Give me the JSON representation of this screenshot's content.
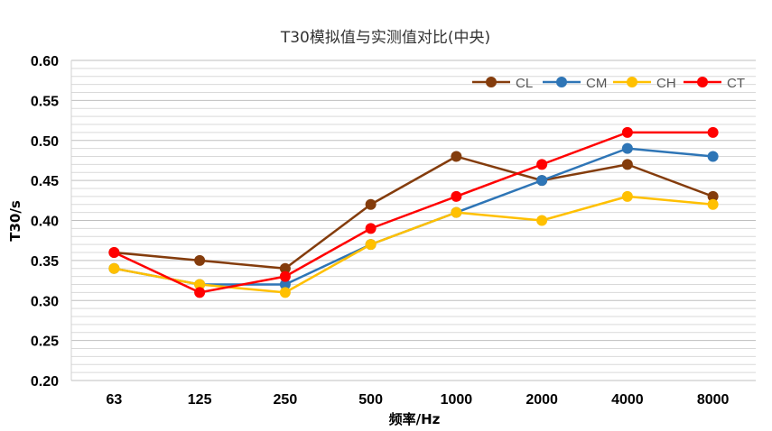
{
  "chart_data": {
    "type": "line",
    "title": "T30模拟值与实测值对比(中央)",
    "xlabel": "频率/Hz",
    "ylabel": "T30/s",
    "categories": [
      "63",
      "125",
      "250",
      "500",
      "1000",
      "2000",
      "4000",
      "8000"
    ],
    "ylim": [
      0.2,
      0.6
    ],
    "yticks": [
      "0.20",
      "0.25",
      "0.30",
      "0.35",
      "0.40",
      "0.45",
      "0.50",
      "0.55",
      "0.60"
    ],
    "legend_position": "top-right",
    "grid": true,
    "series": [
      {
        "name": "CL",
        "color": "#843C0C",
        "values": [
          0.36,
          0.35,
          0.34,
          0.42,
          0.48,
          0.45,
          0.47,
          0.43
        ]
      },
      {
        "name": "CM",
        "color": "#2E75B6",
        "values": [
          0.34,
          0.32,
          0.32,
          0.37,
          0.41,
          0.45,
          0.49,
          0.48
        ]
      },
      {
        "name": "CH",
        "color": "#FFC000",
        "values": [
          0.34,
          0.32,
          0.31,
          0.37,
          0.41,
          0.4,
          0.43,
          0.42
        ]
      },
      {
        "name": "CT",
        "color": "#FF0000",
        "values": [
          0.36,
          0.31,
          0.33,
          0.39,
          0.43,
          0.47,
          0.51,
          0.51
        ]
      }
    ]
  }
}
